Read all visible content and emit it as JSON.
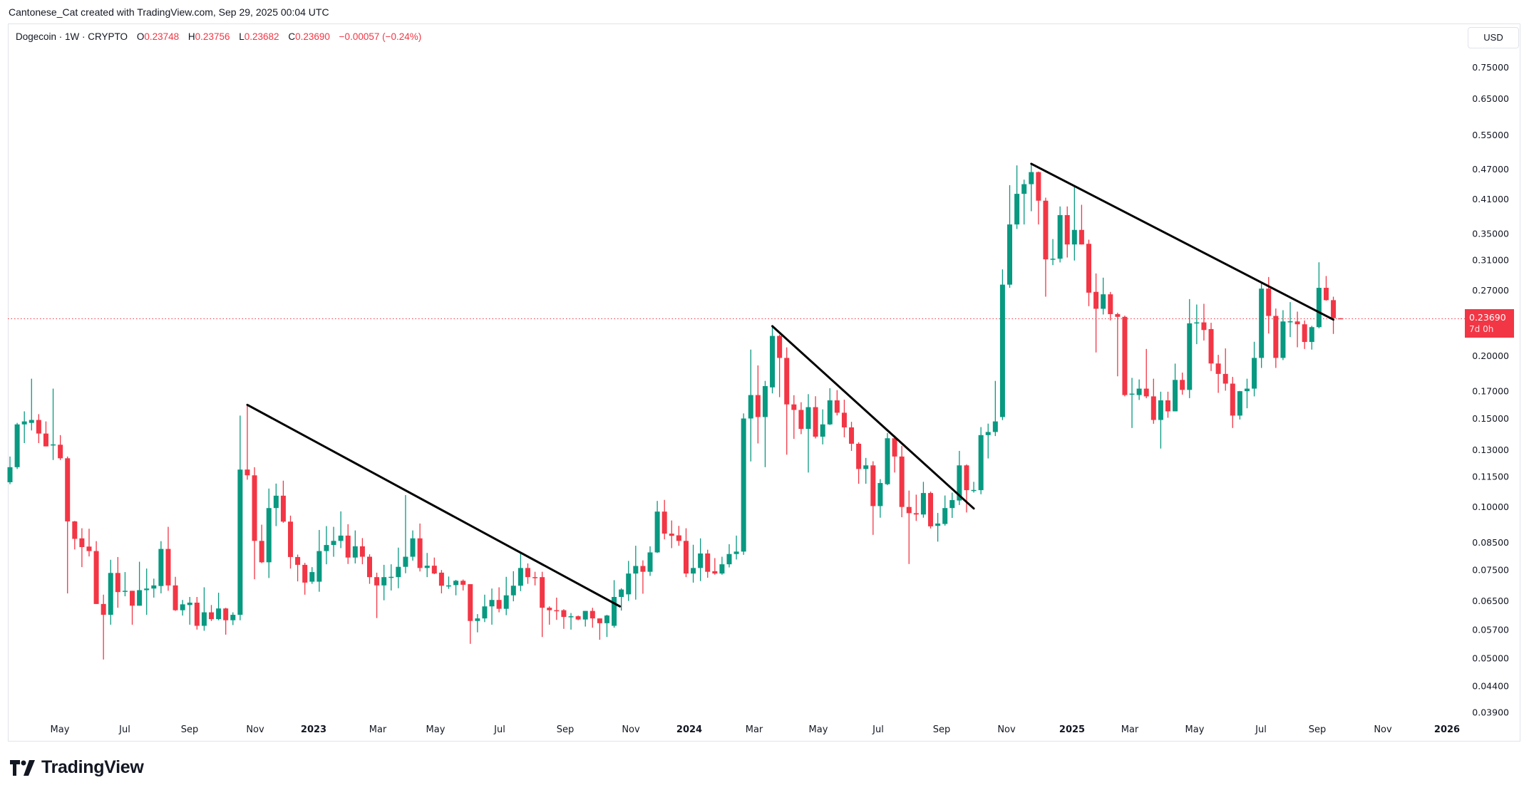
{
  "header": {
    "credit": "Cantonese_Cat created with TradingView.com, Sep 29, 2025 00:04 UTC"
  },
  "legend": {
    "symbol": "Dogecoin · 1W · CRYPTO",
    "open_label": "O",
    "open": "0.23748",
    "high_label": "H",
    "high": "0.23756",
    "low_label": "L",
    "low": "0.23682",
    "close_label": "C",
    "close": "0.23690",
    "change": "−0.00057 (−0.24%)"
  },
  "currency_button": "USD",
  "last_price": {
    "value": "0.23690",
    "countdown": "7d 0h"
  },
  "logo_text": "TradingView",
  "colors": {
    "up": "#089981",
    "down": "#f23645",
    "trendline": "#000000",
    "last_price": "#f23645"
  },
  "chart_data": {
    "type": "candlestick",
    "interval": "1W",
    "scale": "log",
    "ylim": [
      0.0365,
      0.8
    ],
    "grid": false,
    "y_ticks": [
      "0.75000",
      "0.65000",
      "0.55000",
      "0.47000",
      "0.41000",
      "0.35000",
      "0.31000",
      "0.27000",
      "0.20000",
      "0.17000",
      "0.15000",
      "0.13000",
      "0.11500",
      "0.10000",
      "0.08500",
      "0.07500",
      "0.06500",
      "0.05700",
      "0.05000",
      "0.04400",
      "0.03900"
    ],
    "x_ticks": [
      {
        "label": "May",
        "bold": false
      },
      {
        "label": "Jul",
        "bold": false
      },
      {
        "label": "Sep",
        "bold": false
      },
      {
        "label": "Nov",
        "bold": false
      },
      {
        "label": "2023",
        "bold": true
      },
      {
        "label": "Mar",
        "bold": false
      },
      {
        "label": "May",
        "bold": false
      },
      {
        "label": "Jul",
        "bold": false
      },
      {
        "label": "Sep",
        "bold": false
      },
      {
        "label": "Nov",
        "bold": false
      },
      {
        "label": "2024",
        "bold": true
      },
      {
        "label": "Mar",
        "bold": false
      },
      {
        "label": "May",
        "bold": false
      },
      {
        "label": "Jul",
        "bold": false
      },
      {
        "label": "Sep",
        "bold": false
      },
      {
        "label": "Nov",
        "bold": false
      },
      {
        "label": "2025",
        "bold": true
      },
      {
        "label": "Mar",
        "bold": false
      },
      {
        "label": "May",
        "bold": false
      },
      {
        "label": "Jul",
        "bold": false
      },
      {
        "label": "Sep",
        "bold": false
      },
      {
        "label": "Nov",
        "bold": false
      },
      {
        "label": "2026",
        "bold": true
      }
    ],
    "ohlc": [
      [
        0.112,
        0.126,
        0.111,
        0.12
      ],
      [
        0.12,
        0.147,
        0.119,
        0.146
      ],
      [
        0.146,
        0.155,
        0.134,
        0.148
      ],
      [
        0.147,
        0.18,
        0.142,
        0.149
      ],
      [
        0.149,
        0.153,
        0.134,
        0.14
      ],
      [
        0.14,
        0.148,
        0.132,
        0.132
      ],
      [
        0.133,
        0.172,
        0.124,
        0.1332
      ],
      [
        0.133,
        0.139,
        0.124,
        0.125
      ],
      [
        0.125,
        0.126,
        0.0673,
        0.0936
      ],
      [
        0.0936,
        0.0938,
        0.0823,
        0.0864
      ],
      [
        0.0866,
        0.0907,
        0.0759,
        0.0832
      ],
      [
        0.0834,
        0.0905,
        0.0797,
        0.0817
      ],
      [
        0.0817,
        0.0855,
        0.0641,
        0.0641
      ],
      [
        0.0641,
        0.0669,
        0.0497,
        0.061
      ],
      [
        0.061,
        0.0785,
        0.0583,
        0.0739
      ],
      [
        0.0739,
        0.0795,
        0.063,
        0.0677
      ],
      [
        0.068,
        0.0742,
        0.0664,
        0.0681
      ],
      [
        0.0681,
        0.0681,
        0.0583,
        0.0636
      ],
      [
        0.0636,
        0.0778,
        0.0636,
        0.0683
      ],
      [
        0.0683,
        0.0754,
        0.061,
        0.0688
      ],
      [
        0.0688,
        0.072,
        0.066,
        0.0698
      ],
      [
        0.0696,
        0.0855,
        0.0673,
        0.0825
      ],
      [
        0.0825,
        0.0913,
        0.0681,
        0.0698
      ],
      [
        0.0698,
        0.0726,
        0.0621,
        0.0623
      ],
      [
        0.0623,
        0.0653,
        0.0608,
        0.064
      ],
      [
        0.0638,
        0.0662,
        0.0583,
        0.0645
      ],
      [
        0.0645,
        0.0662,
        0.057,
        0.058
      ],
      [
        0.058,
        0.0692,
        0.0567,
        0.0617
      ],
      [
        0.0617,
        0.0638,
        0.0593,
        0.0598
      ],
      [
        0.0598,
        0.0675,
        0.0595,
        0.0628
      ],
      [
        0.0628,
        0.063,
        0.0557,
        0.0595
      ],
      [
        0.0595,
        0.0617,
        0.0582,
        0.061
      ],
      [
        0.061,
        0.152,
        0.0595,
        0.1187
      ],
      [
        0.1187,
        0.1597,
        0.1133,
        0.1156
      ],
      [
        0.1156,
        0.12,
        0.0718,
        0.0856
      ],
      [
        0.0856,
        0.0922,
        0.0773,
        0.0776
      ],
      [
        0.0776,
        0.1088,
        0.0722,
        0.0995
      ],
      [
        0.0995,
        0.1113,
        0.0916,
        0.1053
      ],
      [
        0.1053,
        0.1128,
        0.093,
        0.0935
      ],
      [
        0.0935,
        0.0961,
        0.0754,
        0.0795
      ],
      [
        0.0795,
        0.0804,
        0.0711,
        0.0767
      ],
      [
        0.0767,
        0.0774,
        0.0669,
        0.0707
      ],
      [
        0.071,
        0.0759,
        0.0703,
        0.0742
      ],
      [
        0.071,
        0.09,
        0.0678,
        0.0817
      ],
      [
        0.0817,
        0.0916,
        0.0769,
        0.084
      ],
      [
        0.084,
        0.0913,
        0.0796,
        0.0856
      ],
      [
        0.0856,
        0.098,
        0.0828,
        0.0877
      ],
      [
        0.0877,
        0.0924,
        0.077,
        0.0793
      ],
      [
        0.0793,
        0.0898,
        0.0772,
        0.0835
      ],
      [
        0.0835,
        0.0867,
        0.0769,
        0.0796
      ],
      [
        0.0796,
        0.0805,
        0.0703,
        0.0725
      ],
      [
        0.0725,
        0.074,
        0.0601,
        0.0698
      ],
      [
        0.0698,
        0.0767,
        0.0652,
        0.0725
      ],
      [
        0.0725,
        0.0769,
        0.0682,
        0.0726
      ],
      [
        0.0725,
        0.083,
        0.0689,
        0.076
      ],
      [
        0.076,
        0.1056,
        0.0738,
        0.0796
      ],
      [
        0.0796,
        0.0898,
        0.0782,
        0.0866
      ],
      [
        0.0866,
        0.0927,
        0.0744,
        0.0756
      ],
      [
        0.0756,
        0.081,
        0.0725,
        0.0764
      ],
      [
        0.0764,
        0.0793,
        0.0735,
        0.0737
      ],
      [
        0.074,
        0.0749,
        0.0673,
        0.0697
      ],
      [
        0.0697,
        0.0727,
        0.0687,
        0.0698
      ],
      [
        0.0699,
        0.0716,
        0.0667,
        0.0713
      ],
      [
        0.0713,
        0.0717,
        0.0682,
        0.07
      ],
      [
        0.0702,
        0.0702,
        0.0534,
        0.0593
      ],
      [
        0.0593,
        0.0612,
        0.0563,
        0.06
      ],
      [
        0.06,
        0.0669,
        0.059,
        0.0634
      ],
      [
        0.0634,
        0.0688,
        0.0583,
        0.0653
      ],
      [
        0.0653,
        0.0692,
        0.0617,
        0.0627
      ],
      [
        0.0627,
        0.0726,
        0.0609,
        0.0667
      ],
      [
        0.0667,
        0.0745,
        0.0649,
        0.0697
      ],
      [
        0.0697,
        0.0813,
        0.068,
        0.0756
      ],
      [
        0.0756,
        0.0772,
        0.0703,
        0.0725
      ],
      [
        0.0725,
        0.0743,
        0.0698,
        0.0724
      ],
      [
        0.0725,
        0.0743,
        0.0551,
        0.063
      ],
      [
        0.063,
        0.0634,
        0.0583,
        0.0623
      ],
      [
        0.0623,
        0.066,
        0.0596,
        0.0622
      ],
      [
        0.0623,
        0.0626,
        0.0572,
        0.0604
      ],
      [
        0.0604,
        0.0615,
        0.057,
        0.0606
      ],
      [
        0.0606,
        0.0608,
        0.0595,
        0.0597
      ],
      [
        0.0597,
        0.0621,
        0.0578,
        0.0621
      ],
      [
        0.0621,
        0.063,
        0.0575,
        0.06
      ],
      [
        0.06,
        0.06,
        0.0544,
        0.0587
      ],
      [
        0.0587,
        0.061,
        0.0551,
        0.0608
      ],
      [
        0.058,
        0.0715,
        0.0575,
        0.0662
      ],
      [
        0.0662,
        0.0689,
        0.0622,
        0.0685
      ],
      [
        0.067,
        0.0781,
        0.065,
        0.0737
      ],
      [
        0.0737,
        0.0837,
        0.0654,
        0.0763
      ],
      [
        0.0763,
        0.0783,
        0.0672,
        0.0743
      ],
      [
        0.0743,
        0.0835,
        0.0729,
        0.0812
      ],
      [
        0.0812,
        0.1028,
        0.081,
        0.0979
      ],
      [
        0.0979,
        0.1033,
        0.0862,
        0.0885
      ],
      [
        0.0885,
        0.094,
        0.0828,
        0.0876
      ],
      [
        0.0878,
        0.0917,
        0.0837,
        0.0856
      ],
      [
        0.0856,
        0.0907,
        0.0725,
        0.0737
      ],
      [
        0.0737,
        0.0841,
        0.0707,
        0.0756
      ],
      [
        0.0756,
        0.0866,
        0.0712,
        0.0808
      ],
      [
        0.0808,
        0.0822,
        0.0723,
        0.0743
      ],
      [
        0.0745,
        0.0791,
        0.0733,
        0.0737
      ],
      [
        0.0737,
        0.0796,
        0.0733,
        0.0769
      ],
      [
        0.0769,
        0.0843,
        0.0758,
        0.0806
      ],
      [
        0.0806,
        0.0877,
        0.0786,
        0.0815
      ],
      [
        0.0815,
        0.1535,
        0.0803,
        0.15
      ],
      [
        0.15,
        0.2057,
        0.1232,
        0.167
      ],
      [
        0.167,
        0.1913,
        0.1338,
        0.151
      ],
      [
        0.151,
        0.1782,
        0.12,
        0.174
      ],
      [
        0.173,
        0.229,
        0.1683,
        0.219
      ],
      [
        0.219,
        0.2202,
        0.1654,
        0.198
      ],
      [
        0.198,
        0.2078,
        0.1271,
        0.16
      ],
      [
        0.16,
        0.1669,
        0.1366,
        0.156
      ],
      [
        0.156,
        0.1616,
        0.1396,
        0.143
      ],
      [
        0.143,
        0.1677,
        0.1171,
        0.158
      ],
      [
        0.158,
        0.1661,
        0.1369,
        0.138
      ],
      [
        0.138,
        0.1564,
        0.1332,
        0.146
      ],
      [
        0.146,
        0.1723,
        0.1456,
        0.163
      ],
      [
        0.163,
        0.1708,
        0.1521,
        0.154
      ],
      [
        0.154,
        0.1635,
        0.1376,
        0.144
      ],
      [
        0.144,
        0.1477,
        0.1293,
        0.1336
      ],
      [
        0.1336,
        0.1345,
        0.1112,
        0.119
      ],
      [
        0.119,
        0.1252,
        0.1112,
        0.121
      ],
      [
        0.121,
        0.1233,
        0.088,
        0.1004
      ],
      [
        0.1004,
        0.1136,
        0.0952,
        0.1116
      ],
      [
        0.111,
        0.1403,
        0.1105,
        0.137
      ],
      [
        0.137,
        0.1388,
        0.1171,
        0.126
      ],
      [
        0.126,
        0.1323,
        0.0954,
        0.1
      ],
      [
        0.1,
        0.1078,
        0.077,
        0.0972
      ],
      [
        0.0972,
        0.1058,
        0.0938,
        0.0966
      ],
      [
        0.0966,
        0.1122,
        0.0952,
        0.1066
      ],
      [
        0.1066,
        0.1073,
        0.0906,
        0.0915
      ],
      [
        0.0917,
        0.0973,
        0.0853,
        0.0927
      ],
      [
        0.0925,
        0.1054,
        0.0918,
        0.0995
      ],
      [
        0.0995,
        0.1068,
        0.0951,
        0.1032
      ],
      [
        0.103,
        0.1293,
        0.1009,
        0.121
      ],
      [
        0.121,
        0.1215,
        0.0975,
        0.108
      ],
      [
        0.108,
        0.1122,
        0.1068,
        0.1081
      ],
      [
        0.108,
        0.1442,
        0.106,
        0.139
      ],
      [
        0.139,
        0.1465,
        0.1249,
        0.141
      ],
      [
        0.141,
        0.1782,
        0.1384,
        0.148
      ],
      [
        0.151,
        0.2971,
        0.1489,
        0.277
      ],
      [
        0.277,
        0.4371,
        0.2729,
        0.365
      ],
      [
        0.365,
        0.4785,
        0.3575,
        0.42
      ],
      [
        0.42,
        0.4482,
        0.365,
        0.439
      ],
      [
        0.439,
        0.4821,
        0.3878,
        0.464
      ],
      [
        0.464,
        0.4651,
        0.365,
        0.407
      ],
      [
        0.407,
        0.4126,
        0.2621,
        0.311
      ],
      [
        0.311,
        0.3414,
        0.3029,
        0.312
      ],
      [
        0.312,
        0.3964,
        0.3067,
        0.381
      ],
      [
        0.381,
        0.3964,
        0.3137,
        0.333
      ],
      [
        0.333,
        0.4348,
        0.3094,
        0.356
      ],
      [
        0.356,
        0.3994,
        0.333,
        0.333
      ],
      [
        0.334,
        0.3404,
        0.251,
        0.267
      ],
      [
        0.268,
        0.2916,
        0.203,
        0.248
      ],
      [
        0.248,
        0.286,
        0.2416,
        0.265
      ],
      [
        0.265,
        0.2679,
        0.2351,
        0.242
      ],
      [
        0.242,
        0.2436,
        0.182,
        0.239
      ],
      [
        0.239,
        0.2403,
        0.166,
        0.167
      ],
      [
        0.168,
        0.1807,
        0.1436,
        0.1681
      ],
      [
        0.167,
        0.1794,
        0.1633,
        0.172
      ],
      [
        0.172,
        0.2063,
        0.1646,
        0.166
      ],
      [
        0.166,
        0.18,
        0.1464,
        0.149
      ],
      [
        0.149,
        0.1696,
        0.1307,
        0.163
      ],
      [
        0.163,
        0.1696,
        0.1505,
        0.155
      ],
      [
        0.155,
        0.1929,
        0.155,
        0.179
      ],
      [
        0.179,
        0.1851,
        0.1673,
        0.171
      ],
      [
        0.171,
        0.2593,
        0.1647,
        0.232
      ],
      [
        0.232,
        0.2529,
        0.2109,
        0.233
      ],
      [
        0.233,
        0.2537,
        0.2144,
        0.225
      ],
      [
        0.226,
        0.2326,
        0.1865,
        0.193
      ],
      [
        0.193,
        0.2008,
        0.1687,
        0.184
      ],
      [
        0.184,
        0.2068,
        0.1704,
        0.176
      ],
      [
        0.176,
        0.1815,
        0.1436,
        0.152
      ],
      [
        0.152,
        0.1702,
        0.1493,
        0.17
      ],
      [
        0.17,
        0.18,
        0.1572,
        0.172
      ],
      [
        0.172,
        0.2132,
        0.166,
        0.198
      ],
      [
        0.198,
        0.2798,
        0.1891,
        0.272
      ],
      [
        0.272,
        0.2869,
        0.2214,
        0.24
      ],
      [
        0.24,
        0.2483,
        0.1891,
        0.198
      ],
      [
        0.198,
        0.2464,
        0.196,
        0.234
      ],
      [
        0.234,
        0.2557,
        0.2178,
        0.2342
      ],
      [
        0.234,
        0.2448,
        0.2079,
        0.231
      ],
      [
        0.231,
        0.2351,
        0.2063,
        0.213
      ],
      [
        0.213,
        0.2293,
        0.2057,
        0.228
      ],
      [
        0.228,
        0.3069,
        0.2268,
        0.273
      ],
      [
        0.273,
        0.2882,
        0.2573,
        0.258
      ],
      [
        0.258,
        0.2621,
        0.221,
        0.23748
      ],
      [
        0.23748,
        0.23756,
        0.23682,
        0.2369
      ]
    ],
    "last_close": 0.2369,
    "trendlines": [
      {
        "from": {
          "bar": 33,
          "price": 0.1597
        },
        "to": {
          "bar": 84.8,
          "price": 0.0634
        }
      },
      {
        "from": {
          "bar": 106,
          "price": 0.229
        },
        "to": {
          "bar": 134,
          "price": 0.0993
        }
      },
      {
        "from": {
          "bar": 142,
          "price": 0.482
        },
        "to": {
          "bar": 184,
          "price": 0.236
        }
      }
    ]
  }
}
